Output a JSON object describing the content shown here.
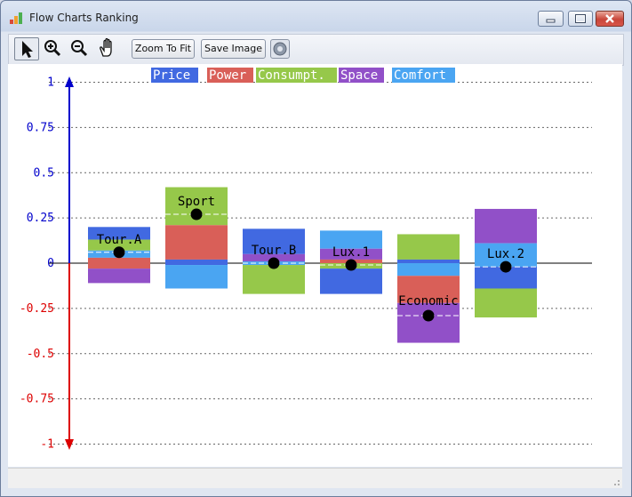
{
  "window": {
    "title": "Flow Charts Ranking"
  },
  "toolbar": {
    "zoom_fit_label": "Zoom To Fit",
    "save_image_label": "Save Image"
  },
  "chart_data": {
    "type": "bar",
    "subtype": "stacked-diverging-flow",
    "title": "",
    "ylim": [
      -1,
      1
    ],
    "yticks": [
      1,
      0.75,
      0.5,
      0.25,
      0,
      -0.25,
      -0.5,
      -0.75,
      -1
    ],
    "ytick_labels": [
      "1",
      "0.75",
      "0.5",
      "0.25",
      "0",
      "-0.25",
      "-0.5",
      "-0.75",
      "-1"
    ],
    "grid": true,
    "legend_position": "top",
    "criteria": [
      {
        "name": "Price",
        "color": "#4169e1"
      },
      {
        "name": "Power",
        "color": "#d95f58"
      },
      {
        "name": "Consumpt.",
        "color": "#96c84a"
      },
      {
        "name": "Space",
        "color": "#9150c8"
      },
      {
        "name": "Comfort",
        "color": "#4aa5f2"
      }
    ],
    "actions": [
      {
        "name": "Tour.A",
        "net_flow": 0.06,
        "label_position": "above",
        "segments": [
          {
            "criterion": "Price",
            "start": 0.13,
            "end": 0.2
          },
          {
            "criterion": "Consumpt.",
            "start": 0.07,
            "end": 0.13
          },
          {
            "criterion": "Comfort",
            "start": 0.03,
            "end": 0.07
          },
          {
            "criterion": "Power",
            "start": -0.03,
            "end": 0.03
          },
          {
            "criterion": "Space",
            "start": -0.11,
            "end": -0.03
          }
        ]
      },
      {
        "name": "Sport",
        "net_flow": 0.27,
        "label_position": "above",
        "segments": [
          {
            "criterion": "Consumpt.",
            "start": 0.21,
            "end": 0.42
          },
          {
            "criterion": "Power",
            "start": 0.02,
            "end": 0.21
          },
          {
            "criterion": "Price",
            "start": -0.01,
            "end": 0.02
          },
          {
            "criterion": "Comfort",
            "start": -0.14,
            "end": -0.01
          }
        ]
      },
      {
        "name": "Tour.B",
        "net_flow": 0.0,
        "label_position": "above",
        "segments": [
          {
            "criterion": "Price",
            "start": 0.05,
            "end": 0.19
          },
          {
            "criterion": "Space",
            "start": 0.01,
            "end": 0.05
          },
          {
            "criterion": "Comfort",
            "start": -0.01,
            "end": 0.01
          },
          {
            "criterion": "Consumpt.",
            "start": -0.17,
            "end": -0.01
          }
        ]
      },
      {
        "name": "Lux.1",
        "net_flow": -0.01,
        "label_position": "above",
        "segments": [
          {
            "criterion": "Comfort",
            "start": 0.08,
            "end": 0.18
          },
          {
            "criterion": "Space",
            "start": 0.02,
            "end": 0.08
          },
          {
            "criterion": "Power",
            "start": 0.0,
            "end": 0.02
          },
          {
            "criterion": "Consumpt.",
            "start": -0.03,
            "end": 0.0
          },
          {
            "criterion": "Price",
            "start": -0.17,
            "end": -0.03
          }
        ]
      },
      {
        "name": "Economic",
        "net_flow": -0.29,
        "label_position": "above",
        "segments": [
          {
            "criterion": "Consumpt.",
            "start": 0.02,
            "end": 0.16
          },
          {
            "criterion": "Price",
            "start": 0.0,
            "end": 0.02
          },
          {
            "criterion": "Comfort",
            "start": -0.07,
            "end": 0.0
          },
          {
            "criterion": "Power",
            "start": -0.22,
            "end": -0.07
          },
          {
            "criterion": "Space",
            "start": -0.44,
            "end": -0.22
          }
        ]
      },
      {
        "name": "Lux.2",
        "net_flow": -0.02,
        "label_position": "above",
        "segments": [
          {
            "criterion": "Space",
            "start": 0.11,
            "end": 0.3
          },
          {
            "criterion": "Comfort",
            "start": -0.02,
            "end": 0.11
          },
          {
            "criterion": "Price",
            "start": -0.14,
            "end": -0.02
          },
          {
            "criterion": "Consumpt.",
            "start": -0.3,
            "end": -0.14
          }
        ]
      }
    ]
  }
}
